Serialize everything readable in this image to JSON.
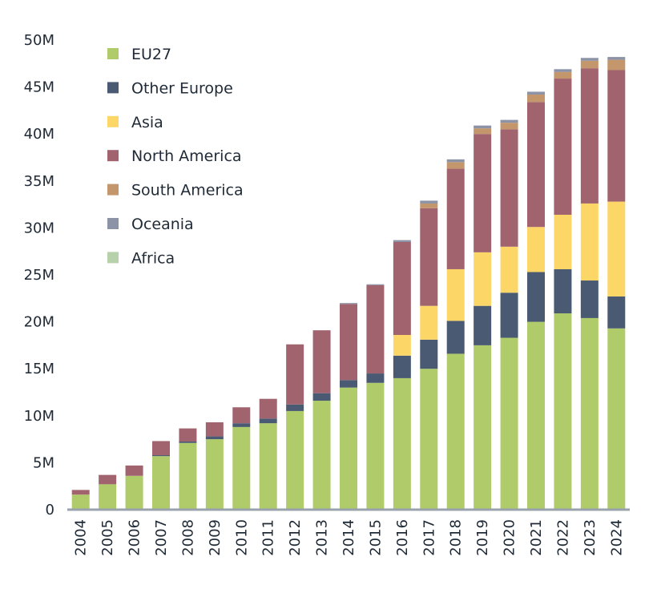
{
  "chart_data": {
    "type": "bar",
    "stacked": true,
    "title": "",
    "xlabel": "",
    "ylabel": "",
    "ylim": [
      0,
      50000000
    ],
    "yticks": [
      0,
      5000000,
      10000000,
      15000000,
      20000000,
      25000000,
      30000000,
      35000000,
      40000000,
      45000000,
      50000000
    ],
    "ytick_labels": [
      "0",
      "5M",
      "10M",
      "15M",
      "20M",
      "25M",
      "30M",
      "35M",
      "40M",
      "45M",
      "50M"
    ],
    "grid": false,
    "legend_position": "top-left",
    "categories": [
      "2004",
      "2005",
      "2006",
      "2007",
      "2008",
      "2009",
      "2010",
      "2011",
      "2012",
      "2013",
      "2014",
      "2015",
      "2016",
      "2017",
      "2018",
      "2019",
      "2020",
      "2021",
      "2022",
      "2023",
      "2024"
    ],
    "series": [
      {
        "name": "EU27",
        "color": "#afcb6a",
        "values": [
          1600000,
          2700000,
          3600000,
          5700000,
          7100000,
          7500000,
          8800000,
          9200000,
          10500000,
          11600000,
          13000000,
          13500000,
          14000000,
          15000000,
          16600000,
          17500000,
          18300000,
          20000000,
          20900000,
          20400000,
          19300000
        ]
      },
      {
        "name": "Other Europe",
        "color": "#4a5a72",
        "values": [
          0,
          0,
          0,
          100000,
          150000,
          300000,
          400000,
          500000,
          700000,
          800000,
          800000,
          1000000,
          2400000,
          3100000,
          3500000,
          4200000,
          4800000,
          5300000,
          4700000,
          4000000,
          3400000
        ]
      },
      {
        "name": "Asia",
        "color": "#fdd668",
        "values": [
          0,
          0,
          0,
          0,
          0,
          0,
          0,
          0,
          0,
          0,
          0,
          0,
          2200000,
          3600000,
          5500000,
          5700000,
          4900000,
          4800000,
          5800000,
          8200000,
          10100000
        ]
      },
      {
        "name": "North America",
        "color": "#a1646f",
        "values": [
          500000,
          1000000,
          1100000,
          1500000,
          1400000,
          1500000,
          1700000,
          2100000,
          6400000,
          6700000,
          8100000,
          9400000,
          9900000,
          10400000,
          10700000,
          12600000,
          12500000,
          13300000,
          14500000,
          14400000,
          14000000
        ]
      },
      {
        "name": "South America",
        "color": "#c4966c",
        "values": [
          0,
          0,
          0,
          0,
          0,
          0,
          0,
          0,
          0,
          0,
          0,
          0,
          0,
          500000,
          700000,
          600000,
          700000,
          800000,
          700000,
          800000,
          1100000
        ]
      },
      {
        "name": "Oceania",
        "color": "#8d93a6",
        "values": [
          0,
          0,
          0,
          0,
          0,
          0,
          0,
          0,
          0,
          0,
          100000,
          100000,
          200000,
          300000,
          300000,
          300000,
          300000,
          300000,
          300000,
          300000,
          300000
        ]
      },
      {
        "name": "Africa",
        "color": "#b7d2ab",
        "values": [
          0,
          0,
          0,
          0,
          0,
          0,
          0,
          0,
          0,
          0,
          0,
          0,
          0,
          0,
          0,
          0,
          0,
          0,
          0,
          0,
          0
        ]
      }
    ]
  }
}
